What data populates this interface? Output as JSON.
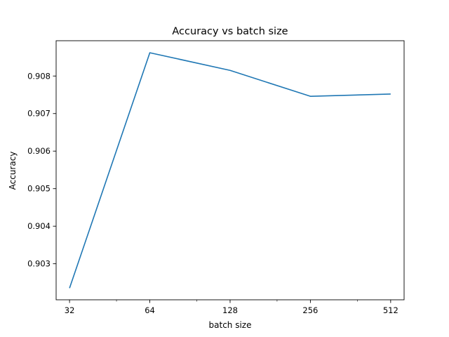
{
  "chart_data": {
    "type": "line",
    "title": "Accuracy vs batch size",
    "xlabel": "batch size",
    "ylabel": "Accuracy",
    "x_scale": "log2",
    "x": [
      32,
      64,
      128,
      256,
      512
    ],
    "x_tick_labels": [
      "32",
      "64",
      "128",
      "256",
      "512"
    ],
    "y_ticks": [
      0.903,
      0.904,
      0.905,
      0.906,
      0.907,
      0.908
    ],
    "y_tick_labels": [
      "0.903",
      "0.904",
      "0.905",
      "0.906",
      "0.907",
      "0.908"
    ],
    "series": [
      {
        "values": [
          0.90235,
          0.90862,
          0.90815,
          0.90746,
          0.90752
        ],
        "color": "#1f77b4"
      }
    ],
    "xlim": [
      28.5,
      575
    ],
    "ylim": [
      0.90204,
      0.90894
    ],
    "grid": false,
    "legend": "none"
  }
}
